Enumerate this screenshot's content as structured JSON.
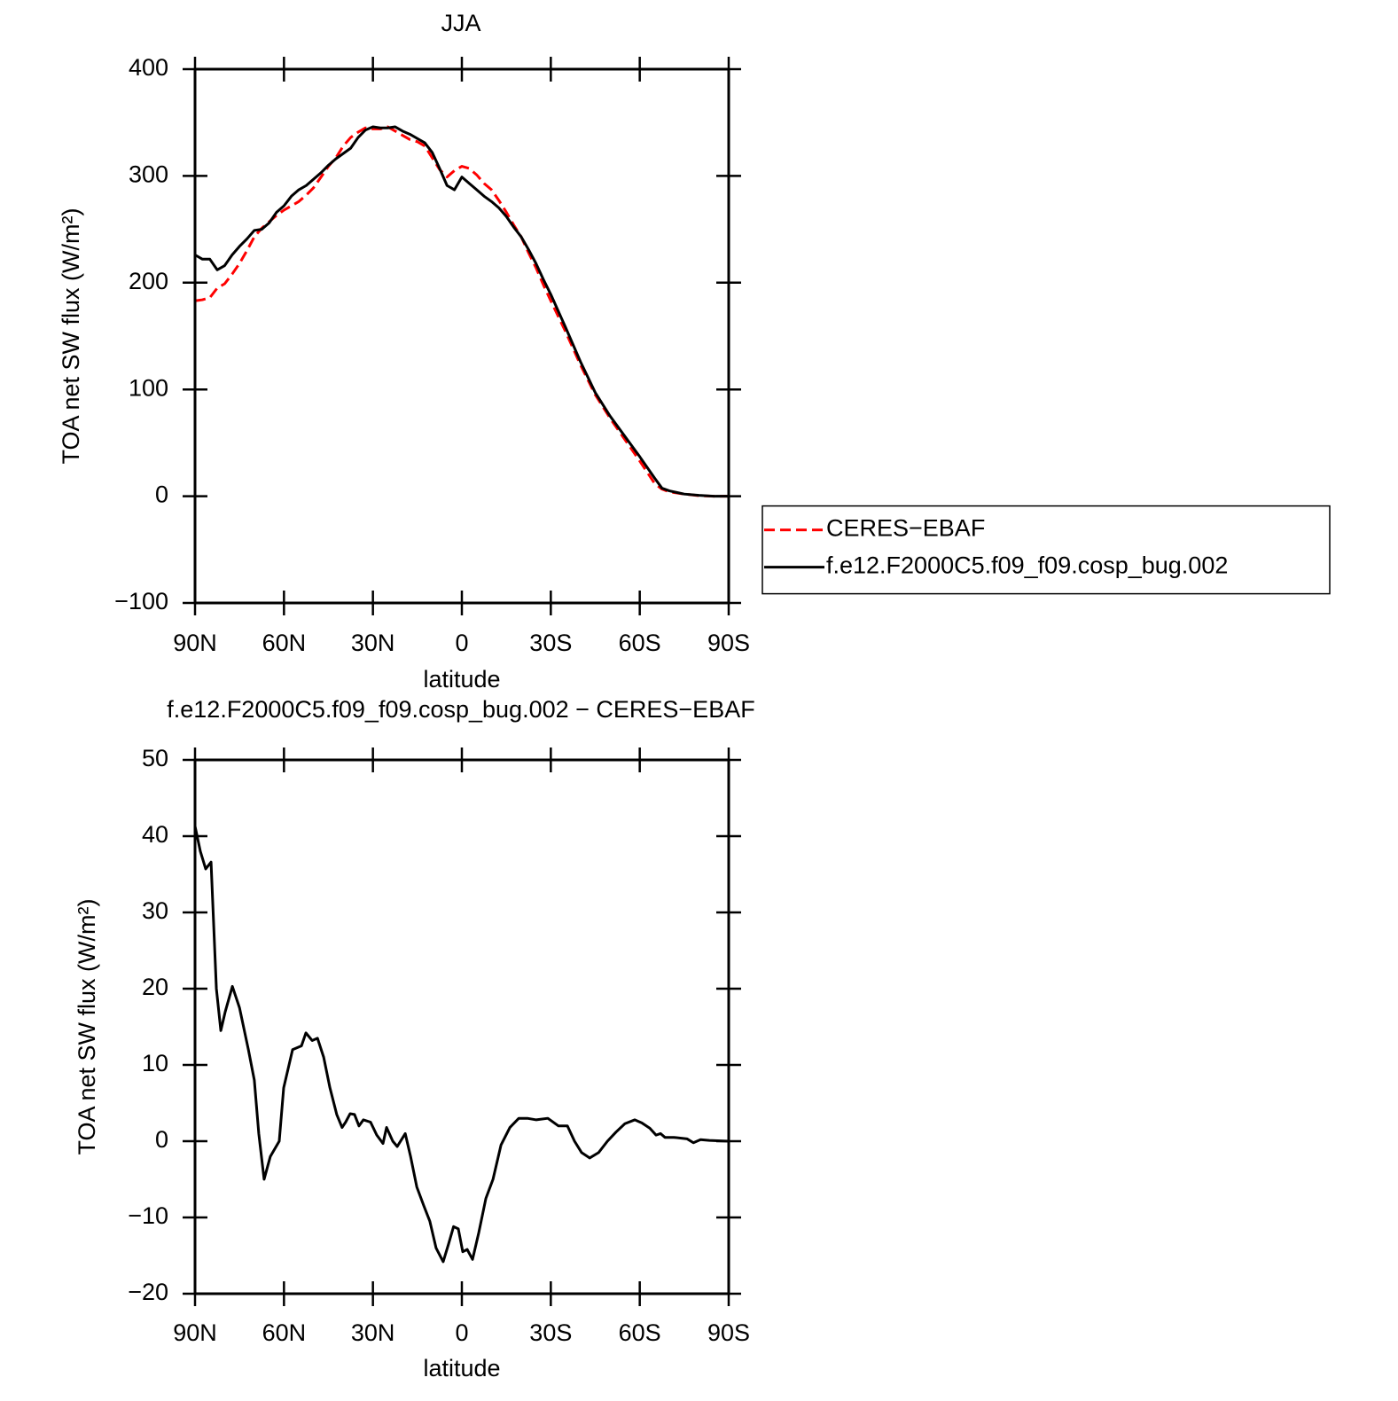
{
  "chart_data": [
    {
      "type": "line",
      "title": "JJA",
      "xlabel": "latitude",
      "ylabel": "TOA net SW flux (W/m²)",
      "x": [
        90,
        87.5,
        85,
        82.5,
        80,
        77.5,
        75,
        72.5,
        70,
        67.5,
        65,
        62.5,
        60,
        57.5,
        55,
        52.5,
        50,
        47.5,
        45,
        42.5,
        40,
        37.5,
        35,
        32.5,
        30,
        27.5,
        25,
        22.5,
        20,
        17.5,
        15,
        12.5,
        10,
        7.5,
        5,
        2.5,
        0,
        -2.5,
        -5,
        -7.5,
        -10,
        -12.5,
        -15,
        -17.5,
        -20,
        -22.5,
        -25,
        -27.5,
        -30,
        -35,
        -40,
        -45,
        -50,
        -55,
        -60,
        -65,
        -67.5,
        -70,
        -75,
        -80,
        -85,
        -90
      ],
      "series": [
        {
          "name": "CERES−EBAF",
          "color": "#ff0000",
          "dash": true,
          "values": [
            183,
            184,
            186,
            195,
            199,
            208,
            218,
            230,
            243,
            251,
            257,
            263,
            268,
            272,
            276,
            282,
            289,
            299,
            309,
            317,
            328,
            336,
            341,
            345,
            344,
            344,
            346,
            342,
            338,
            334,
            332,
            328,
            317,
            306,
            299,
            305,
            309,
            307,
            301,
            293,
            287,
            277,
            266,
            254,
            243,
            228,
            214,
            198,
            183,
            154,
            123,
            95,
            73,
            53,
            33,
            12,
            6.6,
            4,
            2,
            0.5,
            0,
            0
          ]
        },
        {
          "name": "f.e12.F2000C5.f09_f09.cosp_bug.002",
          "color": "#000000",
          "dash": false,
          "values": [
            226,
            222,
            222,
            212,
            216,
            226,
            234,
            241,
            249,
            250,
            256,
            266,
            272,
            281,
            287,
            291,
            297,
            303,
            310,
            316,
            321,
            326,
            336,
            343,
            346,
            345,
            345,
            346,
            342,
            339,
            335,
            331,
            322,
            307,
            291,
            287,
            299,
            293,
            287,
            281,
            276,
            270,
            262,
            252,
            243,
            231,
            218,
            203,
            189,
            158,
            126,
            97,
            75,
            56,
            37,
            17,
            7.5,
            5,
            2,
            0.8,
            0,
            0
          ]
        }
      ],
      "xlim": [
        90,
        -90
      ],
      "xticks": [
        {
          "value": 90,
          "label": "90N"
        },
        {
          "value": 60,
          "label": "60N"
        },
        {
          "value": 30,
          "label": "30N"
        },
        0,
        {
          "value": -30,
          "label": "30S"
        },
        {
          "value": -60,
          "label": "60S"
        },
        {
          "value": -90,
          "label": "90S"
        }
      ],
      "ylim": [
        -100,
        400
      ],
      "yticks": [
        {
          "value": -100,
          "label": "−100"
        },
        0,
        100,
        200,
        300,
        400
      ],
      "legend": "outside-right"
    },
    {
      "type": "line",
      "title": "f.e12.F2000C5.f09_f09.cosp_bug.002 − CERES−EBAF",
      "xlabel": "latitude",
      "ylabel": "TOA net SW flux (W/m²)",
      "x": [
        90,
        88.2,
        86.4,
        84.6,
        82.8,
        81.3,
        79.8,
        77.4,
        75,
        72,
        70,
        68.5,
        66.7,
        64.6,
        61.6,
        60.1,
        57.1,
        54.1,
        52.6,
        50.5,
        48.7,
        46.6,
        44.5,
        42.2,
        40.4,
        39.2,
        37.7,
        36.2,
        34.7,
        33.2,
        30.8,
        28.7,
        26.6,
        25.4,
        23.3,
        21.8,
        19.1,
        17.3,
        15.2,
        12.8,
        10.8,
        8.7,
        6.3,
        4.5,
        2.8,
        1.2,
        -0.3,
        -1.8,
        -3.6,
        -5.7,
        -8.1,
        -10.5,
        -13.2,
        -16.2,
        -19.2,
        -22.1,
        -25.1,
        -29,
        -32.6,
        -35.6,
        -38,
        -40.4,
        -43.1,
        -46.1,
        -49.1,
        -52,
        -55,
        -58.3,
        -60.7,
        -63.4,
        -65.5,
        -67,
        -68.5,
        -71.5,
        -76,
        -78.1,
        -80.5,
        -83.5,
        -90
      ],
      "series": [
        {
          "color": "#000000",
          "dash": false,
          "values": [
            41.3,
            38,
            35.7,
            36.6,
            20,
            14.5,
            17,
            20.3,
            17.5,
            12,
            8,
            1,
            -5,
            -2,
            0,
            7,
            12,
            12.5,
            14.2,
            13.2,
            13.5,
            11,
            7,
            3.5,
            1.8,
            2.5,
            3.6,
            3.5,
            2,
            2.8,
            2.5,
            0.8,
            -0.3,
            1.8,
            0,
            -0.7,
            1,
            -2,
            -6,
            -8.5,
            -10.5,
            -14,
            -15.8,
            -13.5,
            -11.2,
            -11.5,
            -14.5,
            -14.2,
            -15.5,
            -12,
            -7.5,
            -5,
            -0.5,
            1.8,
            3,
            3,
            2.8,
            3,
            2,
            2,
            0,
            -1.5,
            -2.2,
            -1.5,
            0,
            1.2,
            2.3,
            2.8,
            2.4,
            1.7,
            0.8,
            1,
            0.5,
            0.5,
            0.3,
            -0.2,
            0.2,
            0.1,
            0
          ]
        }
      ],
      "xlim": [
        90,
        -90
      ],
      "xticks": [
        {
          "value": 90,
          "label": "90N"
        },
        {
          "value": 60,
          "label": "60N"
        },
        {
          "value": 30,
          "label": "30N"
        },
        0,
        {
          "value": -30,
          "label": "30S"
        },
        {
          "value": -60,
          "label": "60S"
        },
        {
          "value": -90,
          "label": "90S"
        }
      ],
      "ylim": [
        -20,
        50
      ],
      "yticks": [
        {
          "value": -20,
          "label": "−20"
        },
        {
          "value": -10,
          "label": "−10"
        },
        0,
        10,
        20,
        30,
        40,
        50
      ]
    }
  ]
}
